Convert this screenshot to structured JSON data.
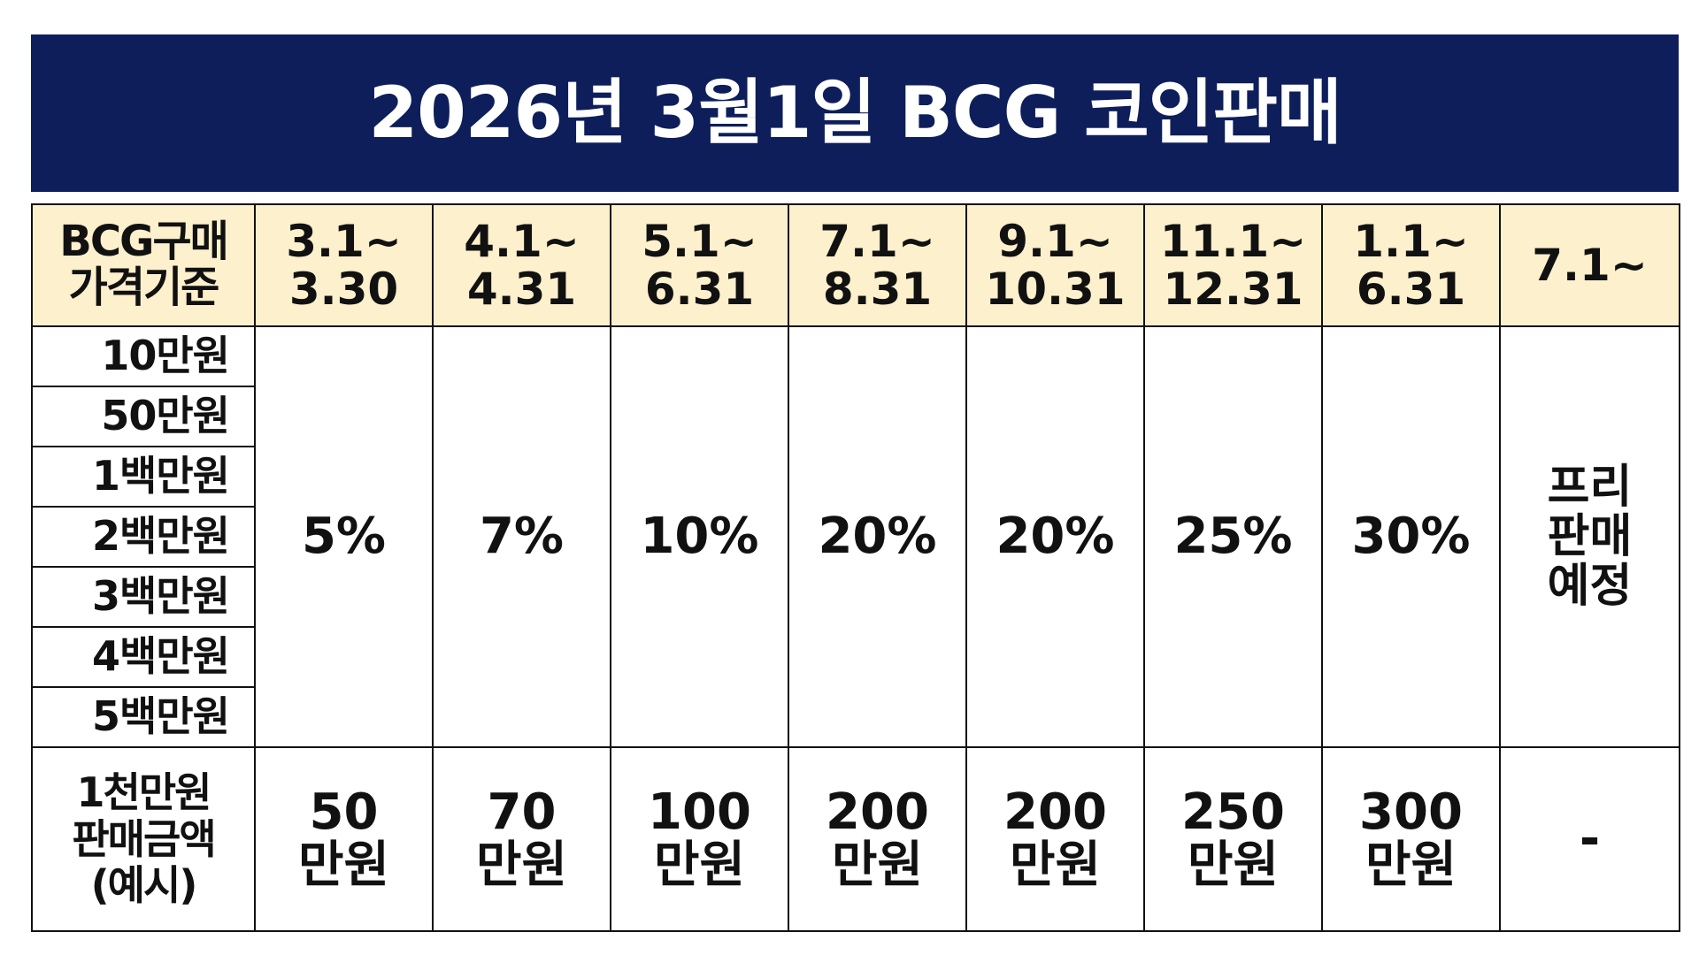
{
  "title": "2026년 3월1일 BCG 코인판매",
  "table": {
    "header_label": [
      "BCG구매",
      "가격기준"
    ],
    "periods": [
      [
        "3.1~",
        "3.30"
      ],
      [
        "4.1~",
        "4.31"
      ],
      [
        "5.1~",
        "6.31"
      ],
      [
        "7.1~",
        "8.31"
      ],
      [
        "9.1~",
        "10.31"
      ],
      [
        "11.1~",
        "12.31"
      ],
      [
        "1.1~",
        "6.31"
      ],
      [
        "7.1~"
      ]
    ],
    "amounts": [
      "10만원",
      "50만원",
      "1백만원",
      "2백만원",
      "3백만원",
      "4백만원",
      "5백만원"
    ],
    "rates": [
      "5%",
      "7%",
      "10%",
      "20%",
      "20%",
      "25%",
      "30%"
    ],
    "free_sale": [
      "프리",
      "판매",
      "예정"
    ],
    "example_label": [
      "1천만원",
      "판매금액",
      "(예시)"
    ],
    "example_values": [
      [
        "50",
        "만원"
      ],
      [
        "70",
        "만원"
      ],
      [
        "100",
        "만원"
      ],
      [
        "200",
        "만원"
      ],
      [
        "200",
        "만원"
      ],
      [
        "250",
        "만원"
      ],
      [
        "300",
        "만원"
      ]
    ],
    "example_last": "-"
  },
  "colors": {
    "banner_bg": "#0d1e5b",
    "header_bg": "#fdf0cc",
    "example_text": "#14307a"
  }
}
